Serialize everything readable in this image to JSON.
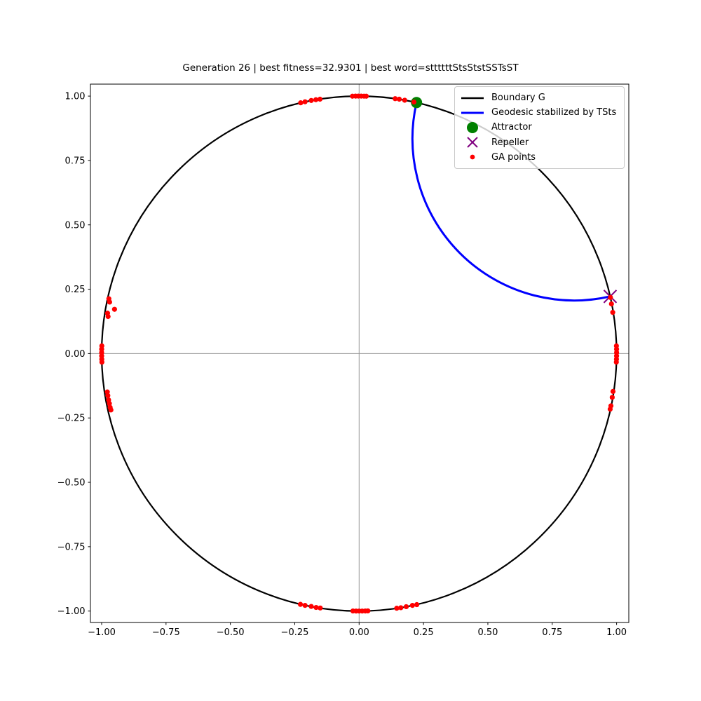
{
  "chart_data": {
    "type": "scatter",
    "title": "Generation 26 | best fitness=32.9301 | best word=sttttttStsStstSSTsST",
    "xlabel": "",
    "ylabel": "",
    "xlim": [
      -1.045,
      1.05
    ],
    "ylim": [
      -1.044,
      1.047
    ],
    "grid": false,
    "axlines": {
      "x": 0.0,
      "y": 0.0
    },
    "x_tick_values": [
      -1.0,
      -0.75,
      -0.5,
      -0.25,
      0.0,
      0.25,
      0.5,
      0.75,
      1.0
    ],
    "x_tick_labels": [
      "−1.00",
      "−0.75",
      "−0.50",
      "−0.25",
      "0.00",
      "0.25",
      "0.50",
      "0.75",
      "1.00"
    ],
    "y_tick_values": [
      -1.0,
      -0.75,
      -0.5,
      -0.25,
      0.0,
      0.25,
      0.5,
      0.75,
      1.0
    ],
    "y_tick_labels": [
      "−1.00",
      "−0.75",
      "−0.50",
      "−0.25",
      "0.00",
      "0.25",
      "0.50",
      "0.75",
      "1.00"
    ],
    "legend_position": "upper right",
    "legend": [
      {
        "label": "Boundary G",
        "marker": "line"
      },
      {
        "label": "Geodesic stabilized by TSts",
        "marker": "line"
      },
      {
        "label": "Attractor",
        "marker": "circle"
      },
      {
        "label": "Repeller",
        "marker": "x"
      },
      {
        "label": "GA points",
        "marker": "dot"
      }
    ],
    "colors": {
      "boundary": "#000000",
      "geodesic": "#0000ff",
      "attractor": "#008000",
      "repeller": "#800080",
      "ga_points": "#ff0000",
      "axline": "#949494",
      "spine": "#000000"
    },
    "boundary_circle": {
      "center": [
        0.0,
        0.0
      ],
      "radius": 1.0
    },
    "attractor": [
      0.223,
      0.975
    ],
    "repeller": [
      0.975,
      0.222
    ],
    "geodesic": {
      "from": [
        0.223,
        0.975
      ],
      "to": [
        0.975,
        0.222
      ],
      "shape": "hyperbolic-geodesic-arc"
    },
    "ga_points": [
      [
        -0.227,
        0.974
      ],
      [
        -0.21,
        0.978
      ],
      [
        -0.186,
        0.983
      ],
      [
        -0.168,
        0.986
      ],
      [
        -0.152,
        0.988
      ],
      [
        -0.026,
        0.9996
      ],
      [
        -0.014,
        1.0
      ],
      [
        -0.003,
        1.0
      ],
      [
        0.008,
        1.0
      ],
      [
        0.019,
        0.9998
      ],
      [
        0.028,
        0.9996
      ],
      [
        0.14,
        0.99
      ],
      [
        0.156,
        0.988
      ],
      [
        0.177,
        0.984
      ],
      [
        0.213,
        0.977
      ],
      [
        -0.228,
        -0.974
      ],
      [
        -0.21,
        -0.978
      ],
      [
        -0.186,
        -0.982
      ],
      [
        -0.167,
        -0.986
      ],
      [
        -0.151,
        -0.988
      ],
      [
        -0.024,
        -0.9997
      ],
      [
        -0.012,
        -1.0
      ],
      [
        0.0,
        -1.0
      ],
      [
        0.012,
        -1.0
      ],
      [
        0.024,
        -0.9997
      ],
      [
        0.034,
        -0.9994
      ],
      [
        0.146,
        -0.989
      ],
      [
        0.162,
        -0.987
      ],
      [
        0.183,
        -0.983
      ],
      [
        0.207,
        -0.978
      ],
      [
        0.224,
        -0.975
      ],
      [
        -0.972,
        0.213
      ],
      [
        -0.969,
        0.2
      ],
      [
        -0.95,
        0.172
      ],
      [
        -0.977,
        0.157
      ],
      [
        -0.975,
        0.144
      ],
      [
        -0.9993,
        0.03
      ],
      [
        -0.9999,
        0.017
      ],
      [
        -1.0,
        0.004
      ],
      [
        -0.9999,
        -0.009
      ],
      [
        -0.9995,
        -0.022
      ],
      [
        -0.999,
        -0.033
      ],
      [
        -0.978,
        -0.149
      ],
      [
        -0.976,
        -0.163
      ],
      [
        -0.973,
        -0.18
      ],
      [
        -0.97,
        -0.194
      ],
      [
        -0.967,
        -0.209
      ],
      [
        -0.964,
        -0.219
      ],
      [
        0.976,
        0.218
      ],
      [
        0.98,
        0.193
      ],
      [
        0.985,
        0.16
      ],
      [
        0.9993,
        0.03
      ],
      [
        0.9999,
        0.017
      ],
      [
        1.0,
        0.004
      ],
      [
        0.9999,
        -0.009
      ],
      [
        0.9995,
        -0.022
      ],
      [
        0.999,
        -0.033
      ],
      [
        0.986,
        -0.147
      ],
      [
        0.983,
        -0.17
      ],
      [
        0.978,
        -0.203
      ],
      [
        0.975,
        -0.216
      ]
    ]
  }
}
